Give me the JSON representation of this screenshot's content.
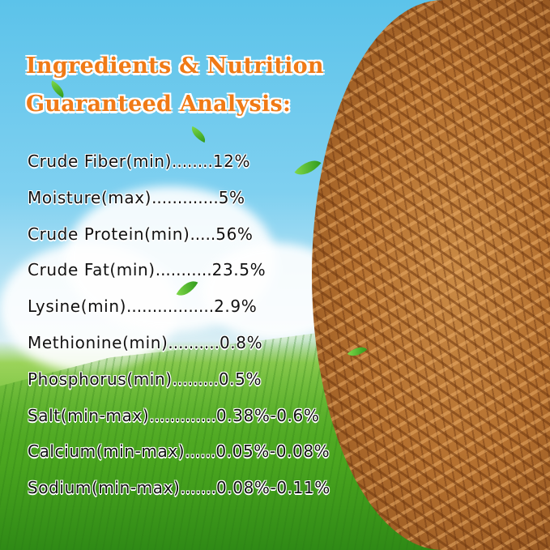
{
  "title": {
    "line1": "Ingredients & Nutrition",
    "line2": "Guaranteed Analysis:"
  },
  "colors": {
    "title": "#f07a16",
    "text": "#111111",
    "sky": "#5cc3ea",
    "grass": "#4aa51f",
    "mealworms": "#b4702f"
  },
  "nutrition": [
    {
      "label": "Crude Fiber(min)",
      "leader": "........",
      "value": "12%"
    },
    {
      "label": "Moisture(max)",
      "leader": ".............",
      "value": "5%"
    },
    {
      "label": "Crude Protein(min)",
      "leader": ".....",
      "value": "56%"
    },
    {
      "label": "Crude Fat(min)",
      "leader": "...........",
      "value": "23.5%"
    },
    {
      "label": "Lysine(min)",
      "leader": ".................",
      "value": "2.9%"
    },
    {
      "label": "Methionine(min)",
      "leader": "..........",
      "value": "0.8%"
    },
    {
      "label": "Phosphorus(min)",
      "leader": ".........",
      "value": "0.5%"
    },
    {
      "label": "Salt(min-max)",
      "leader": ".............",
      "value": "0.38%-0.6%"
    },
    {
      "label": "Calcium(min-max)",
      "leader": "......",
      "value": "0.05%-0.08%"
    },
    {
      "label": "Sodium(min-max)",
      "leader": ".......",
      "value": "0.08%-0.11%"
    }
  ]
}
